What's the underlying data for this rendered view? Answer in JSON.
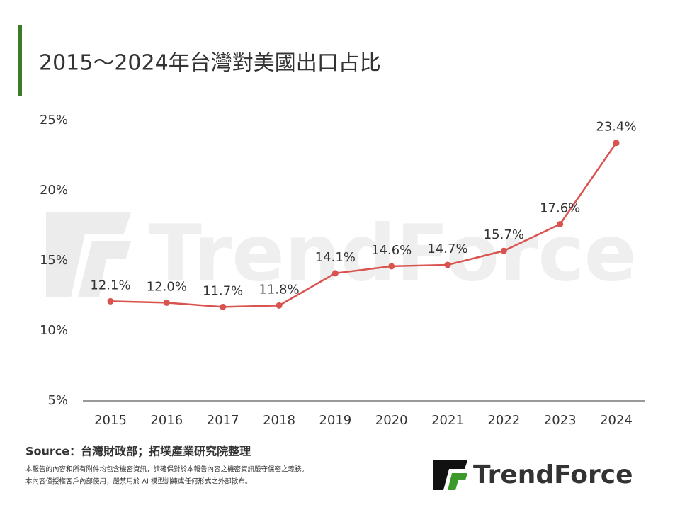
{
  "chart_data": {
    "type": "line",
    "title": "2015～2024年台灣對美國出口占比",
    "categories": [
      "2015",
      "2016",
      "2017",
      "2018",
      "2019",
      "2020",
      "2021",
      "2022",
      "2023",
      "2024"
    ],
    "values": [
      12.1,
      12.0,
      11.7,
      11.8,
      14.1,
      14.6,
      14.7,
      15.7,
      17.6,
      23.4
    ],
    "value_labels": [
      "12.1%",
      "12.0%",
      "11.7%",
      "11.8%",
      "14.1%",
      "14.6%",
      "14.7%",
      "15.7%",
      "17.6%",
      "23.4%"
    ],
    "color": "#d9534f",
    "ylim": [
      5,
      25
    ],
    "yticks": [
      {
        "value": 5,
        "label": "5%"
      },
      {
        "value": 10,
        "label": "10%"
      },
      {
        "value": 15,
        "label": "15%"
      },
      {
        "value": 20,
        "label": "20%"
      },
      {
        "value": 25,
        "label": "25%"
      }
    ],
    "grid": false,
    "source": "Source：台灣財政部；拓墣產業研究院整理",
    "notes": [
      "本報告的內容和所有附件均包含機密資訊，請確保對於本報告內容之機密資訊嚴守保密之義務。",
      "本內容僅授權客戶內部使用，嚴禁用於 AI 模型訓練或任何形式之外部散布。"
    ],
    "brand": "TrendForce"
  }
}
